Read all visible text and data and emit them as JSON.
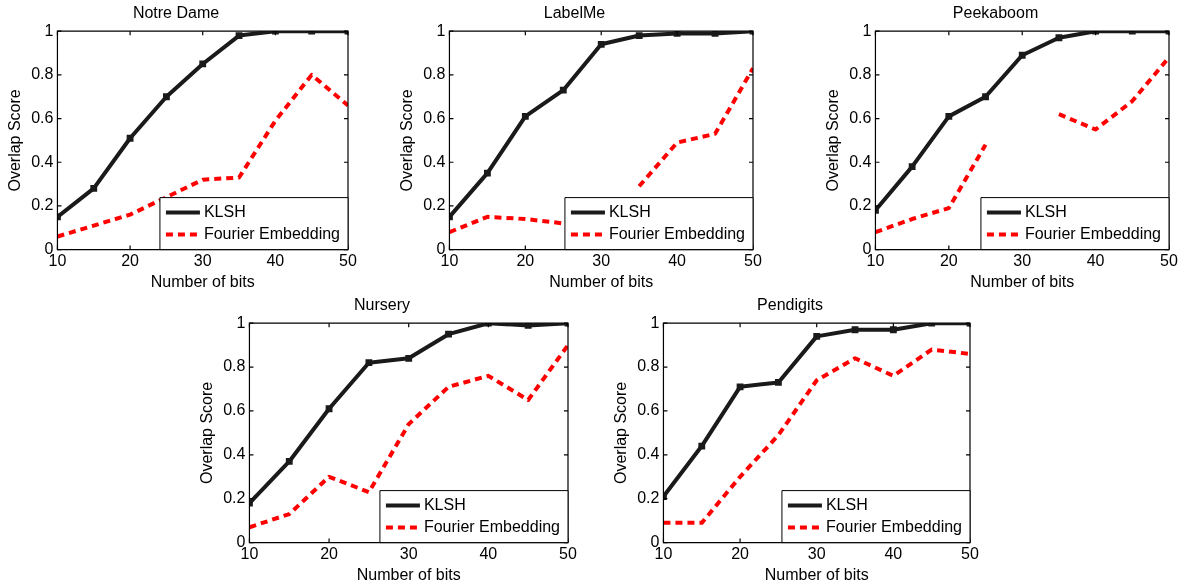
{
  "chart_data": [
    {
      "type": "line",
      "title": "Notre Dame",
      "xlabel": "Number of bits",
      "ylabel": "Overlap Score",
      "x": [
        10,
        15,
        20,
        25,
        30,
        35,
        40,
        45,
        50
      ],
      "xlim": [
        10,
        50
      ],
      "xticks": [
        10,
        20,
        30,
        40,
        50
      ],
      "ylim": [
        0,
        1
      ],
      "yticks": [
        0,
        0.2,
        0.4,
        0.6,
        0.8,
        1
      ],
      "legend": "bottom right",
      "grid": false,
      "series": [
        {
          "name": "KLSH",
          "color": "#1a1a1a",
          "marker": "square",
          "line_style": "solid",
          "values": [
            0.15,
            0.28,
            0.51,
            0.7,
            0.85,
            0.98,
            1,
            1,
            1
          ]
        },
        {
          "name": "Fourier Embedding",
          "color": "#ff0000",
          "marker": "none",
          "line_style": "dashed",
          "values": [
            0.06,
            0.11,
            0.16,
            0.24,
            0.32,
            0.33,
            0.59,
            0.8,
            0.66
          ]
        }
      ]
    },
    {
      "type": "line",
      "title": "LabelMe",
      "xlabel": "Number of bits",
      "ylabel": "Overlap Score",
      "x": [
        10,
        15,
        20,
        25,
        30,
        35,
        40,
        45,
        50
      ],
      "xlim": [
        10,
        50
      ],
      "xticks": [
        10,
        20,
        30,
        40,
        50
      ],
      "ylim": [
        0,
        1
      ],
      "yticks": [
        0,
        0.2,
        0.4,
        0.6,
        0.8,
        1
      ],
      "legend": "bottom right",
      "grid": false,
      "series": [
        {
          "name": "KLSH",
          "color": "#1a1a1a",
          "marker": "square",
          "line_style": "solid",
          "values": [
            0.15,
            0.35,
            0.61,
            0.73,
            0.94,
            0.98,
            0.99,
            0.99,
            1
          ]
        },
        {
          "name": "Fourier Embedding",
          "color": "#ff0000",
          "marker": "none",
          "line_style": "dashed",
          "values": [
            0.08,
            0.15,
            0.14,
            0.12,
            null,
            0.29,
            0.49,
            0.53,
            0.83
          ]
        }
      ]
    },
    {
      "type": "line",
      "title": "Peekaboom",
      "xlabel": "Number of bits",
      "ylabel": "Overlap Score",
      "x": [
        10,
        15,
        20,
        25,
        30,
        35,
        40,
        45,
        50
      ],
      "xlim": [
        10,
        50
      ],
      "xticks": [
        10,
        20,
        30,
        40,
        50
      ],
      "ylim": [
        0,
        1
      ],
      "yticks": [
        0,
        0.2,
        0.4,
        0.6,
        0.8,
        1
      ],
      "legend": "bottom right",
      "grid": false,
      "series": [
        {
          "name": "KLSH",
          "color": "#1a1a1a",
          "marker": "square",
          "line_style": "solid",
          "values": [
            0.18,
            0.38,
            0.61,
            0.7,
            0.89,
            0.97,
            1,
            1,
            1
          ]
        },
        {
          "name": "Fourier Embedding",
          "color": "#ff0000",
          "marker": "none",
          "line_style": "dashed",
          "values": [
            0.08,
            0.14,
            0.19,
            0.48,
            null,
            0.62,
            0.55,
            0.68,
            0.88
          ]
        }
      ]
    },
    {
      "type": "line",
      "title": "Nursery",
      "xlabel": "Number of bits",
      "ylabel": "Overlap Score",
      "x": [
        10,
        15,
        20,
        25,
        30,
        35,
        40,
        45,
        50
      ],
      "xlim": [
        10,
        50
      ],
      "xticks": [
        10,
        20,
        30,
        40,
        50
      ],
      "ylim": [
        0,
        1
      ],
      "yticks": [
        0,
        0.2,
        0.4,
        0.6,
        0.8,
        1
      ],
      "legend": "bottom right",
      "grid": false,
      "series": [
        {
          "name": "KLSH",
          "color": "#1a1a1a",
          "marker": "square",
          "line_style": "solid",
          "values": [
            0.18,
            0.37,
            0.61,
            0.82,
            0.84,
            0.95,
            1,
            0.99,
            1
          ]
        },
        {
          "name": "Fourier Embedding",
          "color": "#ff0000",
          "marker": "none",
          "line_style": "dashed",
          "values": [
            0.07,
            0.13,
            0.3,
            0.23,
            0.54,
            0.71,
            0.76,
            0.65,
            0.9
          ]
        }
      ]
    },
    {
      "type": "line",
      "title": "Pendigits",
      "xlabel": "Number of bits",
      "ylabel": "Overlap Score",
      "x": [
        10,
        15,
        20,
        25,
        30,
        35,
        40,
        45,
        50
      ],
      "xlim": [
        10,
        50
      ],
      "xticks": [
        10,
        20,
        30,
        40,
        50
      ],
      "ylim": [
        0,
        1
      ],
      "yticks": [
        0,
        0.2,
        0.4,
        0.6,
        0.8,
        1
      ],
      "legend": "bottom right",
      "grid": false,
      "series": [
        {
          "name": "KLSH",
          "color": "#1a1a1a",
          "marker": "square",
          "line_style": "solid",
          "values": [
            0.21,
            0.44,
            0.71,
            0.73,
            0.94,
            0.97,
            0.97,
            1,
            1
          ]
        },
        {
          "name": "Fourier Embedding",
          "color": "#ff0000",
          "marker": "none",
          "line_style": "dashed",
          "values": [
            0.09,
            0.09,
            0.3,
            0.49,
            0.74,
            0.84,
            0.76,
            0.88,
            0.86
          ]
        }
      ]
    }
  ]
}
